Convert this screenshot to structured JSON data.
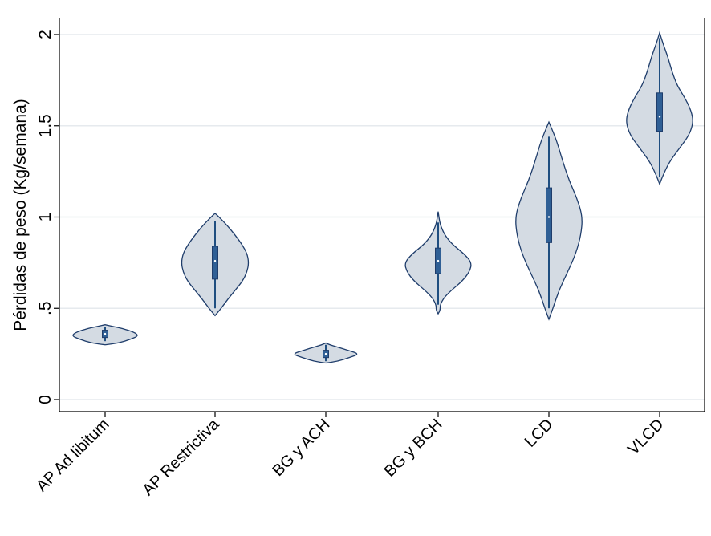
{
  "chart_data": {
    "type": "violin",
    "ylabel": "Pérdidas de peso (Kg/semana)",
    "xlabel": "",
    "ylim": [
      0,
      2
    ],
    "yticks": [
      {
        "value": 0,
        "label": "0"
      },
      {
        "value": 0.5,
        "label": ".5"
      },
      {
        "value": 1,
        "label": "1"
      },
      {
        "value": 1.5,
        "label": "1.5"
      },
      {
        "value": 2,
        "label": "2"
      }
    ],
    "grid": true,
    "colors": {
      "fill": "#d4dbe3",
      "outline": "#1f3d6b",
      "box": "#2f5f95"
    },
    "categories": [
      "AP Ad libitum",
      "AP Restrictiva",
      "BG y ACH",
      "BG y BCH",
      "LCD",
      "VLCD"
    ],
    "groups": [
      {
        "name": "AP Ad libitum",
        "min": 0.3,
        "max": 0.41,
        "q1": 0.34,
        "median": 0.36,
        "q3": 0.38,
        "whisker_low": 0.32,
        "whisker_high": 0.4,
        "density": [
          [
            0.3,
            0.0
          ],
          [
            0.31,
            0.4
          ],
          [
            0.33,
            0.75
          ],
          [
            0.35,
            1.0
          ],
          [
            0.37,
            0.85
          ],
          [
            0.39,
            0.5
          ],
          [
            0.4,
            0.25
          ],
          [
            0.41,
            0.0
          ]
        ]
      },
      {
        "name": "AP Restrictiva",
        "min": 0.46,
        "max": 1.02,
        "q1": 0.66,
        "median": 0.76,
        "q3": 0.84,
        "whisker_low": 0.5,
        "whisker_high": 0.98,
        "density": [
          [
            0.46,
            0.0
          ],
          [
            0.5,
            0.18
          ],
          [
            0.55,
            0.38
          ],
          [
            0.6,
            0.6
          ],
          [
            0.65,
            0.82
          ],
          [
            0.7,
            0.95
          ],
          [
            0.75,
            1.0
          ],
          [
            0.8,
            0.95
          ],
          [
            0.85,
            0.8
          ],
          [
            0.9,
            0.6
          ],
          [
            0.95,
            0.38
          ],
          [
            1.0,
            0.12
          ],
          [
            1.02,
            0.0
          ]
        ]
      },
      {
        "name": "BG y ACH",
        "min": 0.2,
        "max": 0.31,
        "q1": 0.23,
        "median": 0.25,
        "q3": 0.27,
        "whisker_low": 0.21,
        "whisker_high": 0.3,
        "density": [
          [
            0.2,
            0.0
          ],
          [
            0.21,
            0.35
          ],
          [
            0.23,
            0.7
          ],
          [
            0.25,
            1.0
          ],
          [
            0.27,
            0.65
          ],
          [
            0.29,
            0.3
          ],
          [
            0.3,
            0.12
          ],
          [
            0.31,
            0.0
          ]
        ]
      },
      {
        "name": "BG y BCH",
        "min": 0.47,
        "max": 1.03,
        "q1": 0.69,
        "median": 0.76,
        "q3": 0.83,
        "whisker_low": 0.52,
        "whisker_high": 0.97,
        "density": [
          [
            0.47,
            0.0
          ],
          [
            0.49,
            0.06
          ],
          [
            0.52,
            0.06
          ],
          [
            0.56,
            0.18
          ],
          [
            0.6,
            0.4
          ],
          [
            0.65,
            0.72
          ],
          [
            0.7,
            0.93
          ],
          [
            0.75,
            1.0
          ],
          [
            0.8,
            0.76
          ],
          [
            0.85,
            0.42
          ],
          [
            0.9,
            0.2
          ],
          [
            0.95,
            0.08
          ],
          [
            0.98,
            0.04
          ],
          [
            1.03,
            0.0
          ]
        ]
      },
      {
        "name": "LCD",
        "min": 0.44,
        "max": 1.52,
        "q1": 0.86,
        "median": 1.0,
        "q3": 1.16,
        "whisker_low": 0.5,
        "whisker_high": 1.44,
        "density": [
          [
            0.44,
            0.0
          ],
          [
            0.5,
            0.12
          ],
          [
            0.6,
            0.3
          ],
          [
            0.7,
            0.56
          ],
          [
            0.8,
            0.8
          ],
          [
            0.9,
            0.95
          ],
          [
            1.0,
            1.0
          ],
          [
            1.1,
            0.84
          ],
          [
            1.2,
            0.6
          ],
          [
            1.3,
            0.42
          ],
          [
            1.4,
            0.26
          ],
          [
            1.46,
            0.14
          ],
          [
            1.52,
            0.0
          ]
        ]
      },
      {
        "name": "VLCD",
        "min": 1.18,
        "max": 2.01,
        "q1": 1.47,
        "median": 1.55,
        "q3": 1.68,
        "whisker_low": 1.22,
        "whisker_high": 1.98,
        "density": [
          [
            1.18,
            0.0
          ],
          [
            1.22,
            0.08
          ],
          [
            1.3,
            0.28
          ],
          [
            1.38,
            0.6
          ],
          [
            1.45,
            0.88
          ],
          [
            1.52,
            1.0
          ],
          [
            1.58,
            0.94
          ],
          [
            1.65,
            0.76
          ],
          [
            1.72,
            0.52
          ],
          [
            1.8,
            0.36
          ],
          [
            1.88,
            0.24
          ],
          [
            1.95,
            0.1
          ],
          [
            2.01,
            0.0
          ]
        ]
      }
    ]
  }
}
